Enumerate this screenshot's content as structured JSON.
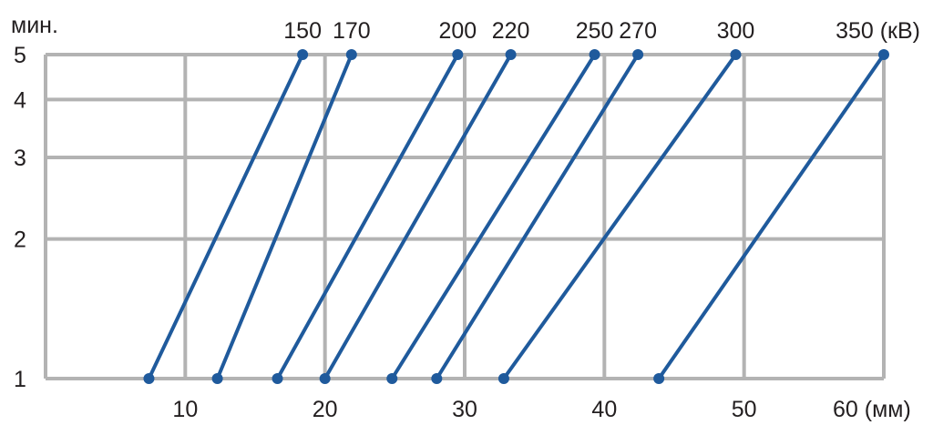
{
  "chart_data": {
    "type": "line",
    "title": "",
    "xlabel": "",
    "ylabel": "мин.",
    "y_scale": "log",
    "xlim": [
      0,
      60
    ],
    "ylim": [
      1,
      5
    ],
    "x_ticks": [
      10,
      20,
      30,
      40,
      50,
      60
    ],
    "x_tick_labels": [
      "10",
      "20",
      "30",
      "40",
      "50",
      "60 (мм)"
    ],
    "y_ticks": [
      1,
      2,
      3,
      4,
      5
    ],
    "y_tick_labels": [
      "1",
      "2",
      "3",
      "4",
      "5"
    ],
    "grid": true,
    "series": [
      {
        "name": "150",
        "label": "150",
        "points": [
          [
            7.4,
            1
          ],
          [
            18.4,
            5
          ]
        ]
      },
      {
        "name": "170",
        "label": "170",
        "points": [
          [
            12.3,
            1
          ],
          [
            21.9,
            5
          ]
        ]
      },
      {
        "name": "200",
        "label": "200",
        "points": [
          [
            16.6,
            1
          ],
          [
            29.5,
            5
          ]
        ]
      },
      {
        "name": "220",
        "label": "220",
        "points": [
          [
            20.0,
            1
          ],
          [
            33.3,
            5
          ]
        ]
      },
      {
        "name": "250",
        "label": "250",
        "points": [
          [
            24.8,
            1
          ],
          [
            39.3,
            5
          ]
        ]
      },
      {
        "name": "270",
        "label": "270",
        "points": [
          [
            28.0,
            1
          ],
          [
            42.4,
            5
          ]
        ]
      },
      {
        "name": "300",
        "label": "300",
        "points": [
          [
            32.8,
            1
          ],
          [
            49.4,
            5
          ]
        ]
      },
      {
        "name": "350",
        "label": "350 (кВ)",
        "points": [
          [
            43.9,
            1
          ],
          [
            60.0,
            5
          ]
        ]
      }
    ]
  },
  "colors": {
    "series": "#1f5a9c",
    "grid": "#b3b3b3",
    "text": "#231f20"
  }
}
